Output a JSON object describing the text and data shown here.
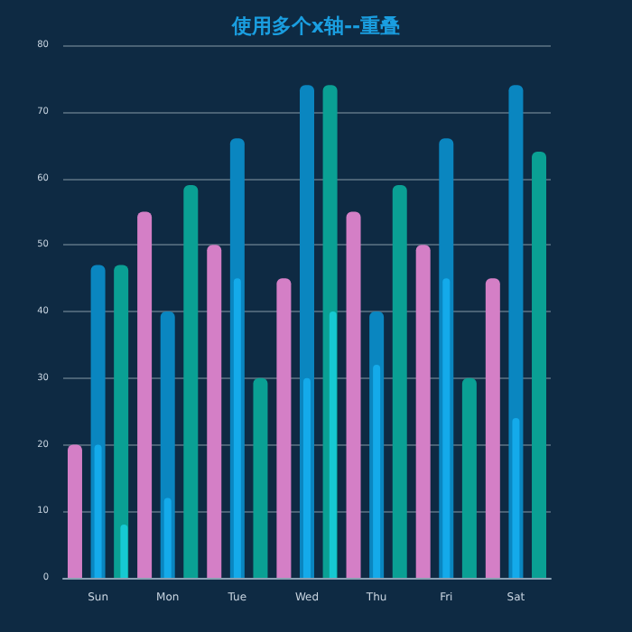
{
  "chart_data": {
    "type": "bar",
    "title": "使用多个x轴--重叠",
    "categories": [
      "Sun",
      "Mon",
      "Tue",
      "Wed",
      "Thu",
      "Fri",
      "Sat"
    ],
    "series": [
      {
        "color": "#d47fc6",
        "values": [
          20,
          55,
          50,
          45,
          55,
          50,
          45
        ]
      },
      {
        "color": "#0a86c0",
        "values": [
          47,
          40,
          66,
          74,
          40,
          66,
          74
        ]
      },
      {
        "color": "#0aa094",
        "values": [
          47,
          59,
          30,
          74,
          59,
          30,
          64
        ]
      },
      {
        "color": "#14aaea",
        "values": [
          20,
          12,
          45,
          30,
          32,
          45,
          24
        ]
      },
      {
        "color": "#16c9d2",
        "values": [
          8,
          null,
          null,
          40,
          null,
          null,
          null
        ]
      }
    ],
    "ylim": [
      0,
      80
    ],
    "yticks": [
      0,
      10,
      20,
      30,
      40,
      50,
      60,
      70,
      80
    ],
    "grid": "y"
  }
}
